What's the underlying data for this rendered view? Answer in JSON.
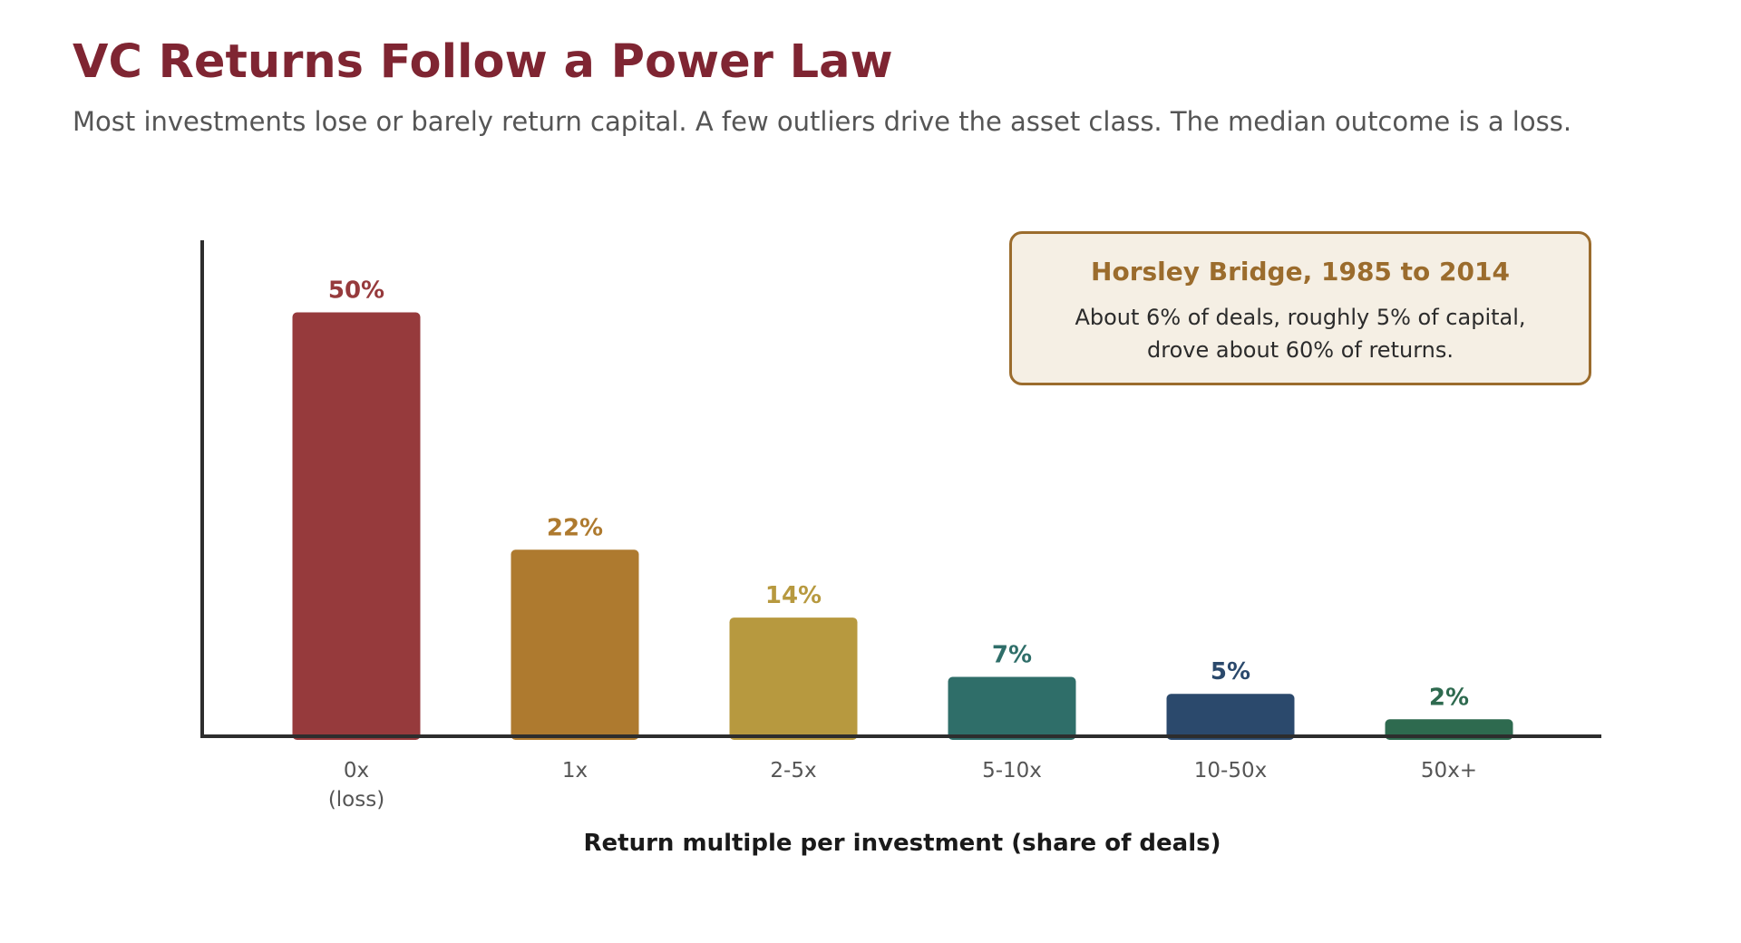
{
  "title": "VC Returns Follow a Power Law",
  "subtitle": "Most investments lose or barely return capital. A few outliers drive the asset class. The median outcome is a loss.",
  "note": {
    "title": "Horsley Bridge, 1985 to 2014",
    "text": "About 6% of deals, roughly 5% of capital, drove about 60% of returns."
  },
  "chart_data": {
    "type": "bar",
    "categories": [
      "0x\n(loss)",
      "1x",
      "2-5x",
      "5-10x",
      "10-50x",
      "50x+"
    ],
    "values": [
      50,
      22,
      14,
      7,
      5,
      2
    ],
    "value_labels": [
      "50%",
      "22%",
      "14%",
      "7%",
      "5%",
      "2%"
    ],
    "colors": [
      "#963a3c",
      "#ae7a2f",
      "#b7993f",
      "#2f6e69",
      "#2b496c",
      "#2e6a4f"
    ],
    "label_colors": [
      "#963a3c",
      "#ae7a2f",
      "#b7993f",
      "#2f6e69",
      "#2b496c",
      "#2e6a4f"
    ],
    "xlabel": "Return multiple per investment (share of deals)",
    "ylabel": "",
    "ylim": [
      0,
      58.5
    ],
    "grid": false,
    "axis_color": "#2d2d2d",
    "label_text_color": "#555555",
    "xlabel_color": "#1a1a1a"
  }
}
